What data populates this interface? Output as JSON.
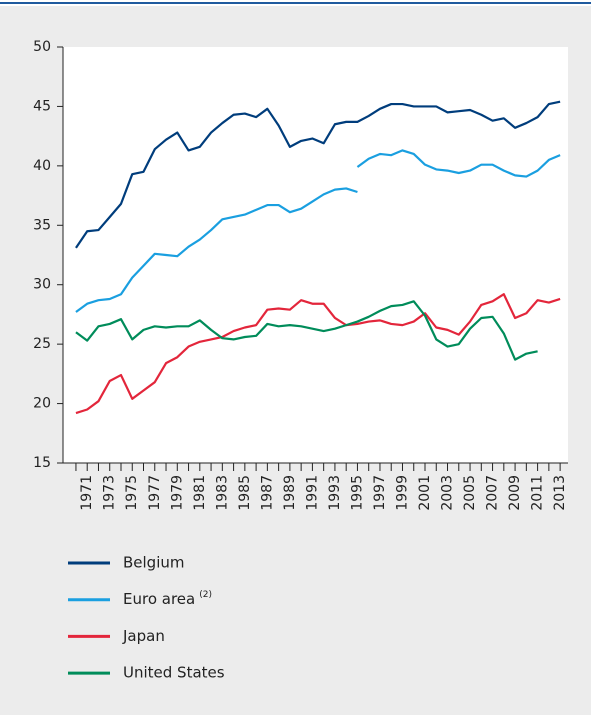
{
  "chart_data": {
    "type": "line",
    "x": [
      1970,
      1971,
      1972,
      1973,
      1974,
      1975,
      1976,
      1977,
      1978,
      1979,
      1980,
      1981,
      1982,
      1983,
      1984,
      1985,
      1986,
      1987,
      1988,
      1989,
      1990,
      1991,
      1992,
      1993,
      1994,
      1995,
      1996,
      1997,
      1998,
      1999,
      2000,
      2001,
      2002,
      2003,
      2004,
      2005,
      2006,
      2007,
      2008,
      2009,
      2010,
      2011,
      2012,
      2013
    ],
    "xlim": [
      1968.85,
      2013.7
    ],
    "xticks": [
      1971,
      1973,
      1975,
      1977,
      1979,
      1981,
      1983,
      1985,
      1987,
      1989,
      1991,
      1993,
      1995,
      1997,
      1999,
      2001,
      2003,
      2005,
      2007,
      2009,
      2011,
      2013
    ],
    "ylim": [
      15,
      50
    ],
    "yticks": [
      15,
      20,
      25,
      30,
      35,
      40,
      45,
      50
    ],
    "series": [
      {
        "name": "Belgium",
        "color": "#003d7c",
        "values": [
          33.1,
          34.5,
          34.6,
          35.7,
          36.8,
          39.3,
          39.5,
          41.4,
          42.2,
          42.8,
          41.3,
          41.6,
          42.8,
          43.6,
          44.3,
          44.4,
          44.1,
          44.8,
          43.4,
          41.6,
          42.1,
          42.3,
          41.9,
          43.5,
          43.7,
          43.7,
          44.2,
          44.8,
          45.2,
          45.2,
          45.0,
          45.0,
          45.0,
          44.5,
          44.6,
          44.7,
          44.3,
          43.8,
          44.0,
          43.2,
          43.6,
          44.1,
          45.2,
          45.4
        ]
      },
      {
        "name": "Euro area",
        "note": "(2)",
        "color": "#1a9fe0",
        "x": [
          1970,
          1971,
          1972,
          1973,
          1974,
          1975,
          1976,
          1977,
          1978,
          1979,
          1980,
          1981,
          1982,
          1983,
          1984,
          1985,
          1986,
          1987,
          1988,
          1989,
          1990,
          1991,
          1992,
          1993,
          1994,
          1995,
          null,
          1995,
          1996,
          1997,
          1998,
          1999,
          2000,
          2001,
          2002,
          2003,
          2004,
          2005,
          2006,
          2007,
          2008,
          2009,
          2010,
          2011,
          2012,
          2013
        ],
        "values": [
          27.7,
          28.4,
          28.7,
          28.8,
          29.2,
          30.6,
          31.6,
          32.6,
          32.5,
          32.4,
          33.2,
          33.8,
          34.6,
          35.5,
          35.7,
          35.9,
          36.3,
          36.7,
          36.7,
          36.1,
          36.4,
          37.0,
          37.6,
          38.0,
          38.1,
          37.8,
          null,
          39.9,
          40.6,
          41.0,
          40.9,
          41.3,
          41.0,
          40.1,
          39.7,
          39.6,
          39.4,
          39.6,
          40.1,
          40.1,
          39.6,
          39.2,
          39.1,
          39.6,
          40.5,
          40.9
        ]
      },
      {
        "name": "Japan",
        "color": "#e3263b",
        "values": [
          19.2,
          19.5,
          20.2,
          21.9,
          22.4,
          20.4,
          21.1,
          21.8,
          23.4,
          23.9,
          24.8,
          25.2,
          25.4,
          25.6,
          26.1,
          26.4,
          26.6,
          27.9,
          28.0,
          27.9,
          28.7,
          28.4,
          28.4,
          27.2,
          26.6,
          26.7,
          26.9,
          27.0,
          26.7,
          26.6,
          26.9,
          27.6,
          26.4,
          26.2,
          25.8,
          26.9,
          28.3,
          28.6,
          29.2,
          27.2,
          27.6,
          28.7,
          28.5,
          28.8
        ]
      },
      {
        "name": "United States",
        "color": "#008c5a",
        "values": [
          26.0,
          25.3,
          26.5,
          26.7,
          27.1,
          25.4,
          26.2,
          26.5,
          26.4,
          26.5,
          26.5,
          27.0,
          26.2,
          25.5,
          25.4,
          25.6,
          25.7,
          26.7,
          26.5,
          26.6,
          26.5,
          26.3,
          26.1,
          26.3,
          26.6,
          26.9,
          27.3,
          27.8,
          28.2,
          28.3,
          28.6,
          27.4,
          25.4,
          24.8,
          25.0,
          26.3,
          27.2,
          27.3,
          25.9,
          23.7,
          24.2,
          24.4,
          null,
          null
        ]
      }
    ]
  }
}
